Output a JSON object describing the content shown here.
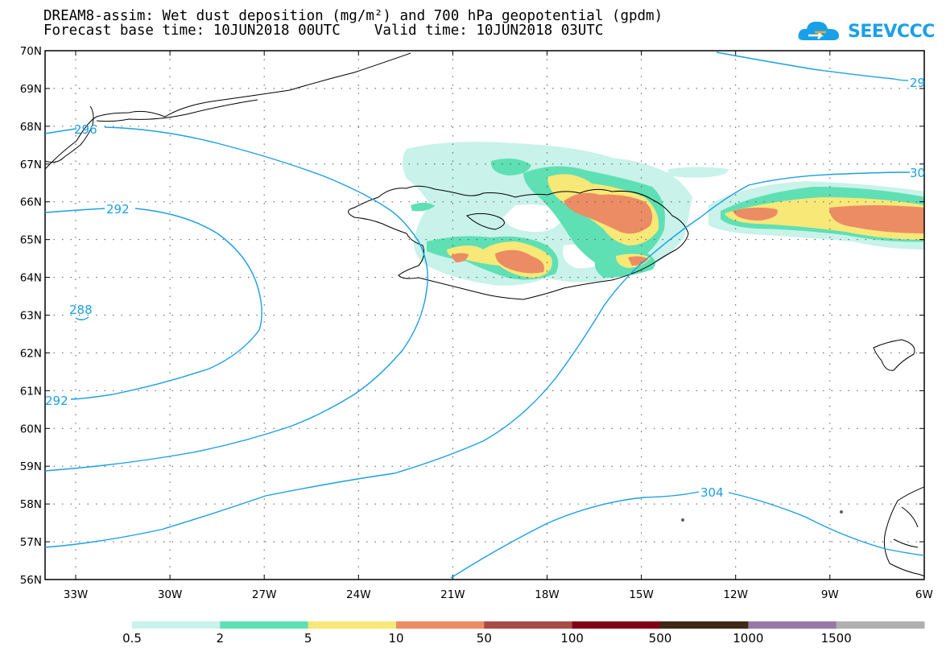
{
  "header": {
    "title_line1": "DREAM8-assim: Wet dust deposition (mg/m²) and 700 hPa geopotential (gpdm)",
    "title_line2": "Forecast base time: 10JUN2018 00UTC    Valid time: 10JUN2018 03UTC",
    "logo_text": "SEEVCCC"
  },
  "map": {
    "lat_labels": [
      "70N",
      "69N",
      "68N",
      "67N",
      "66N",
      "65N",
      "64N",
      "63N",
      "62N",
      "61N",
      "60N",
      "59N",
      "58N",
      "57N",
      "56N"
    ],
    "lon_labels": [
      "33W",
      "30W",
      "27W",
      "24W",
      "21W",
      "18W",
      "15W",
      "12W",
      "9W",
      "6W"
    ],
    "contour_labels": [
      "296",
      "292",
      "288",
      "292",
      "304",
      "29",
      "30"
    ],
    "contour_color": "#1a9fe6"
  },
  "colorbar": {
    "colors": [
      "#c8f2ea",
      "#5ee0b4",
      "#f8e878",
      "#ec8c64",
      "#a84c48",
      "#800018",
      "#402818",
      "#9878a8",
      "#b0b0b0"
    ],
    "labels": [
      "0.5",
      "2",
      "5",
      "10",
      "50",
      "100",
      "500",
      "1000",
      "1500"
    ]
  }
}
